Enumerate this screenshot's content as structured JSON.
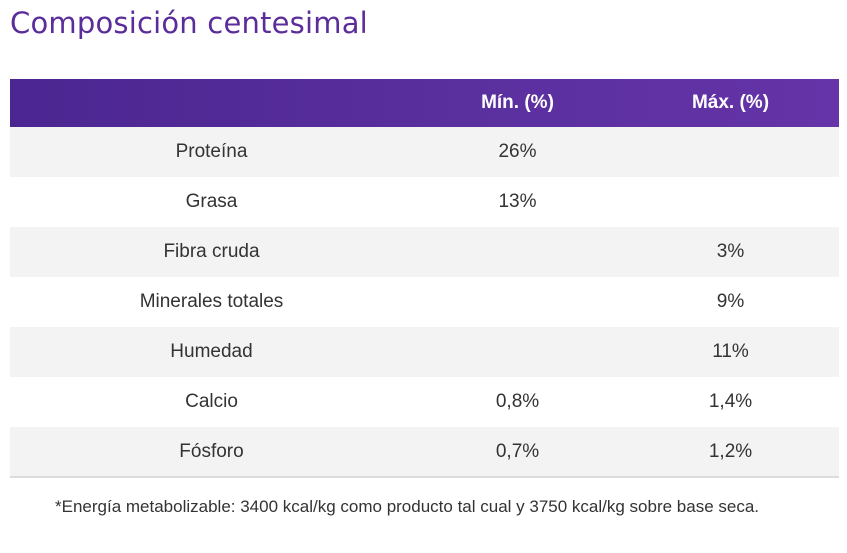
{
  "title": "Composición centesimal",
  "table": {
    "headers": [
      "",
      "Mín. (%)",
      "Máx. (%)"
    ],
    "rows": [
      {
        "name": "Proteína",
        "min": "26%",
        "max": ""
      },
      {
        "name": "Grasa",
        "min": "13%",
        "max": ""
      },
      {
        "name": "Fibra cruda",
        "min": "",
        "max": "3%"
      },
      {
        "name": "Minerales totales",
        "min": "",
        "max": "9%"
      },
      {
        "name": "Humedad",
        "min": "",
        "max": "11%"
      },
      {
        "name": "Calcio",
        "min": "0,8%",
        "max": "1,4%"
      },
      {
        "name": "Fósforo",
        "min": "0,7%",
        "max": "1,2%"
      }
    ]
  },
  "footnote": "*Energía metabolizable: 3400 kcal/kg como producto tal cual y 3750 kcal/kg sobre base seca.",
  "colors": {
    "title": "#5b2d9b",
    "header_bg": "#5a2f9e",
    "row_shade": "#f3f3f3"
  }
}
